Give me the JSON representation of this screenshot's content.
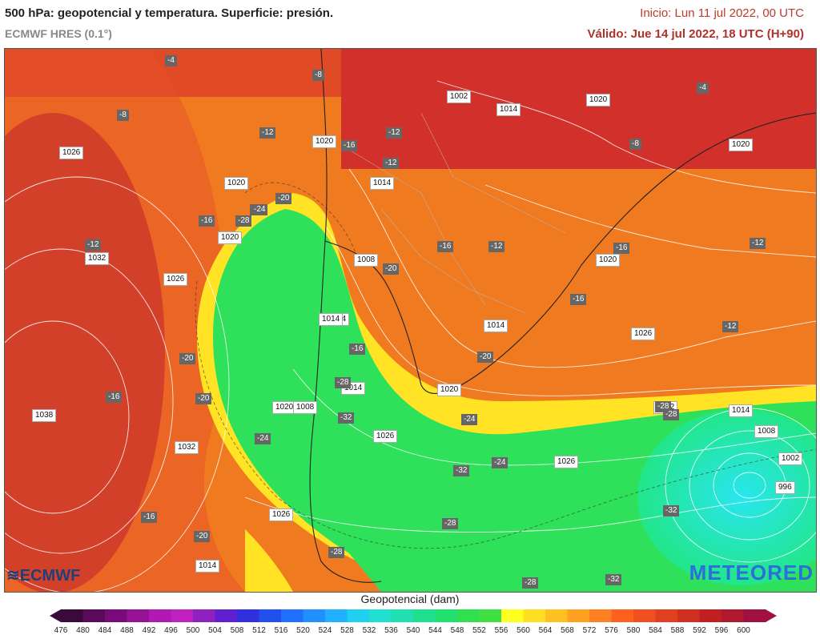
{
  "header": {
    "title": "500 hPa: geopotencial y temperatura. Superficie: presión.",
    "model": "ECMWF HRES (0.1°)",
    "init": "Inicio: Lun 11 jul 2022, 00 UTC",
    "valid": "Válido: Jue 14 jul 2022, 18 UTC (H+90)"
  },
  "brands": {
    "left": "ECMWF",
    "right": "METEORED"
  },
  "colorbar": {
    "title": "Geopotencial (dam)",
    "ticks": [
      "476",
      "480",
      "484",
      "488",
      "492",
      "496",
      "500",
      "504",
      "508",
      "512",
      "516",
      "520",
      "524",
      "528",
      "532",
      "536",
      "540",
      "544",
      "548",
      "552",
      "556",
      "560",
      "564",
      "568",
      "572",
      "576",
      "580",
      "584",
      "588",
      "592",
      "596",
      "600"
    ],
    "colors": [
      "#3a0a3a",
      "#5a0a5a",
      "#7a0a7a",
      "#951295",
      "#b01ab0",
      "#c020c0",
      "#9020c0",
      "#6020d0",
      "#3030e0",
      "#2050f0",
      "#2070ff",
      "#2090ff",
      "#20b0ff",
      "#20d0f0",
      "#20e0d0",
      "#20e0b0",
      "#20e090",
      "#20e070",
      "#30e050",
      "#40e040",
      "#ffff20",
      "#ffe020",
      "#ffc020",
      "#ffa020",
      "#ff8020",
      "#ff6020",
      "#f05020",
      "#e04020",
      "#d03020",
      "#c02020",
      "#b01830",
      "#a01040"
    ]
  },
  "pressure_labels": [
    "1002",
    "1014",
    "1020",
    "1026",
    "1032",
    "1038",
    "1008",
    "1014",
    "1014",
    "1020",
    "1032",
    "1026",
    "1026",
    "1020",
    "1020",
    "1002",
    "1008",
    "1014",
    "1020",
    "1026",
    "1014",
    "1020",
    "1026",
    "1008",
    "1002",
    "996",
    "1014",
    "1020",
    "1026",
    "1014",
    "1020",
    "1014"
  ],
  "temp_labels": [
    "-4",
    "-8",
    "-8",
    "-12",
    "-16",
    "-12",
    "-16",
    "-12",
    "-20",
    "-24",
    "-28",
    "-16",
    "-12",
    "-12",
    "-16",
    "-12",
    "-8",
    "-4",
    "-16",
    "-12",
    "-24",
    "-20",
    "-20",
    "-24",
    "-28",
    "-32",
    "-32",
    "-28",
    "-16",
    "-20",
    "-16",
    "-20",
    "-24",
    "-28",
    "-32",
    "-28",
    "-32",
    "-28",
    "-16",
    "-20",
    "-24",
    "-28"
  ]
}
